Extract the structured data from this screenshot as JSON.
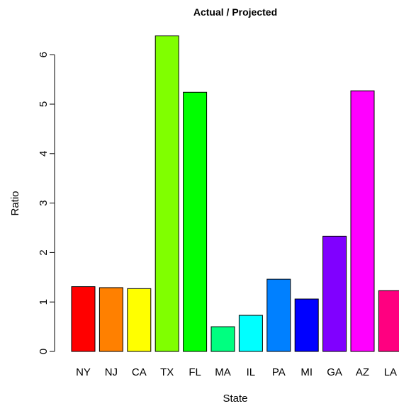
{
  "chart_data": {
    "type": "bar",
    "title": "Actual / Projected",
    "xlabel": "State",
    "ylabel": "Ratio",
    "categories": [
      "NY",
      "NJ",
      "CA",
      "TX",
      "FL",
      "MA",
      "IL",
      "PA",
      "MI",
      "GA",
      "AZ",
      "LA"
    ],
    "values": [
      1.31,
      1.29,
      1.27,
      6.38,
      5.24,
      0.5,
      0.73,
      1.46,
      1.06,
      2.33,
      5.27,
      1.23
    ],
    "colors": [
      "#FF0000",
      "#FF8000",
      "#FFFF00",
      "#80FF00",
      "#00FF00",
      "#00FF80",
      "#00FFFF",
      "#0080FF",
      "#0000FF",
      "#8000FF",
      "#FF00FF",
      "#FF0080"
    ],
    "yticks": [
      0,
      1,
      2,
      3,
      4,
      5,
      6
    ],
    "ylim": [
      0,
      6.5
    ],
    "grid": false,
    "legend": "none"
  }
}
